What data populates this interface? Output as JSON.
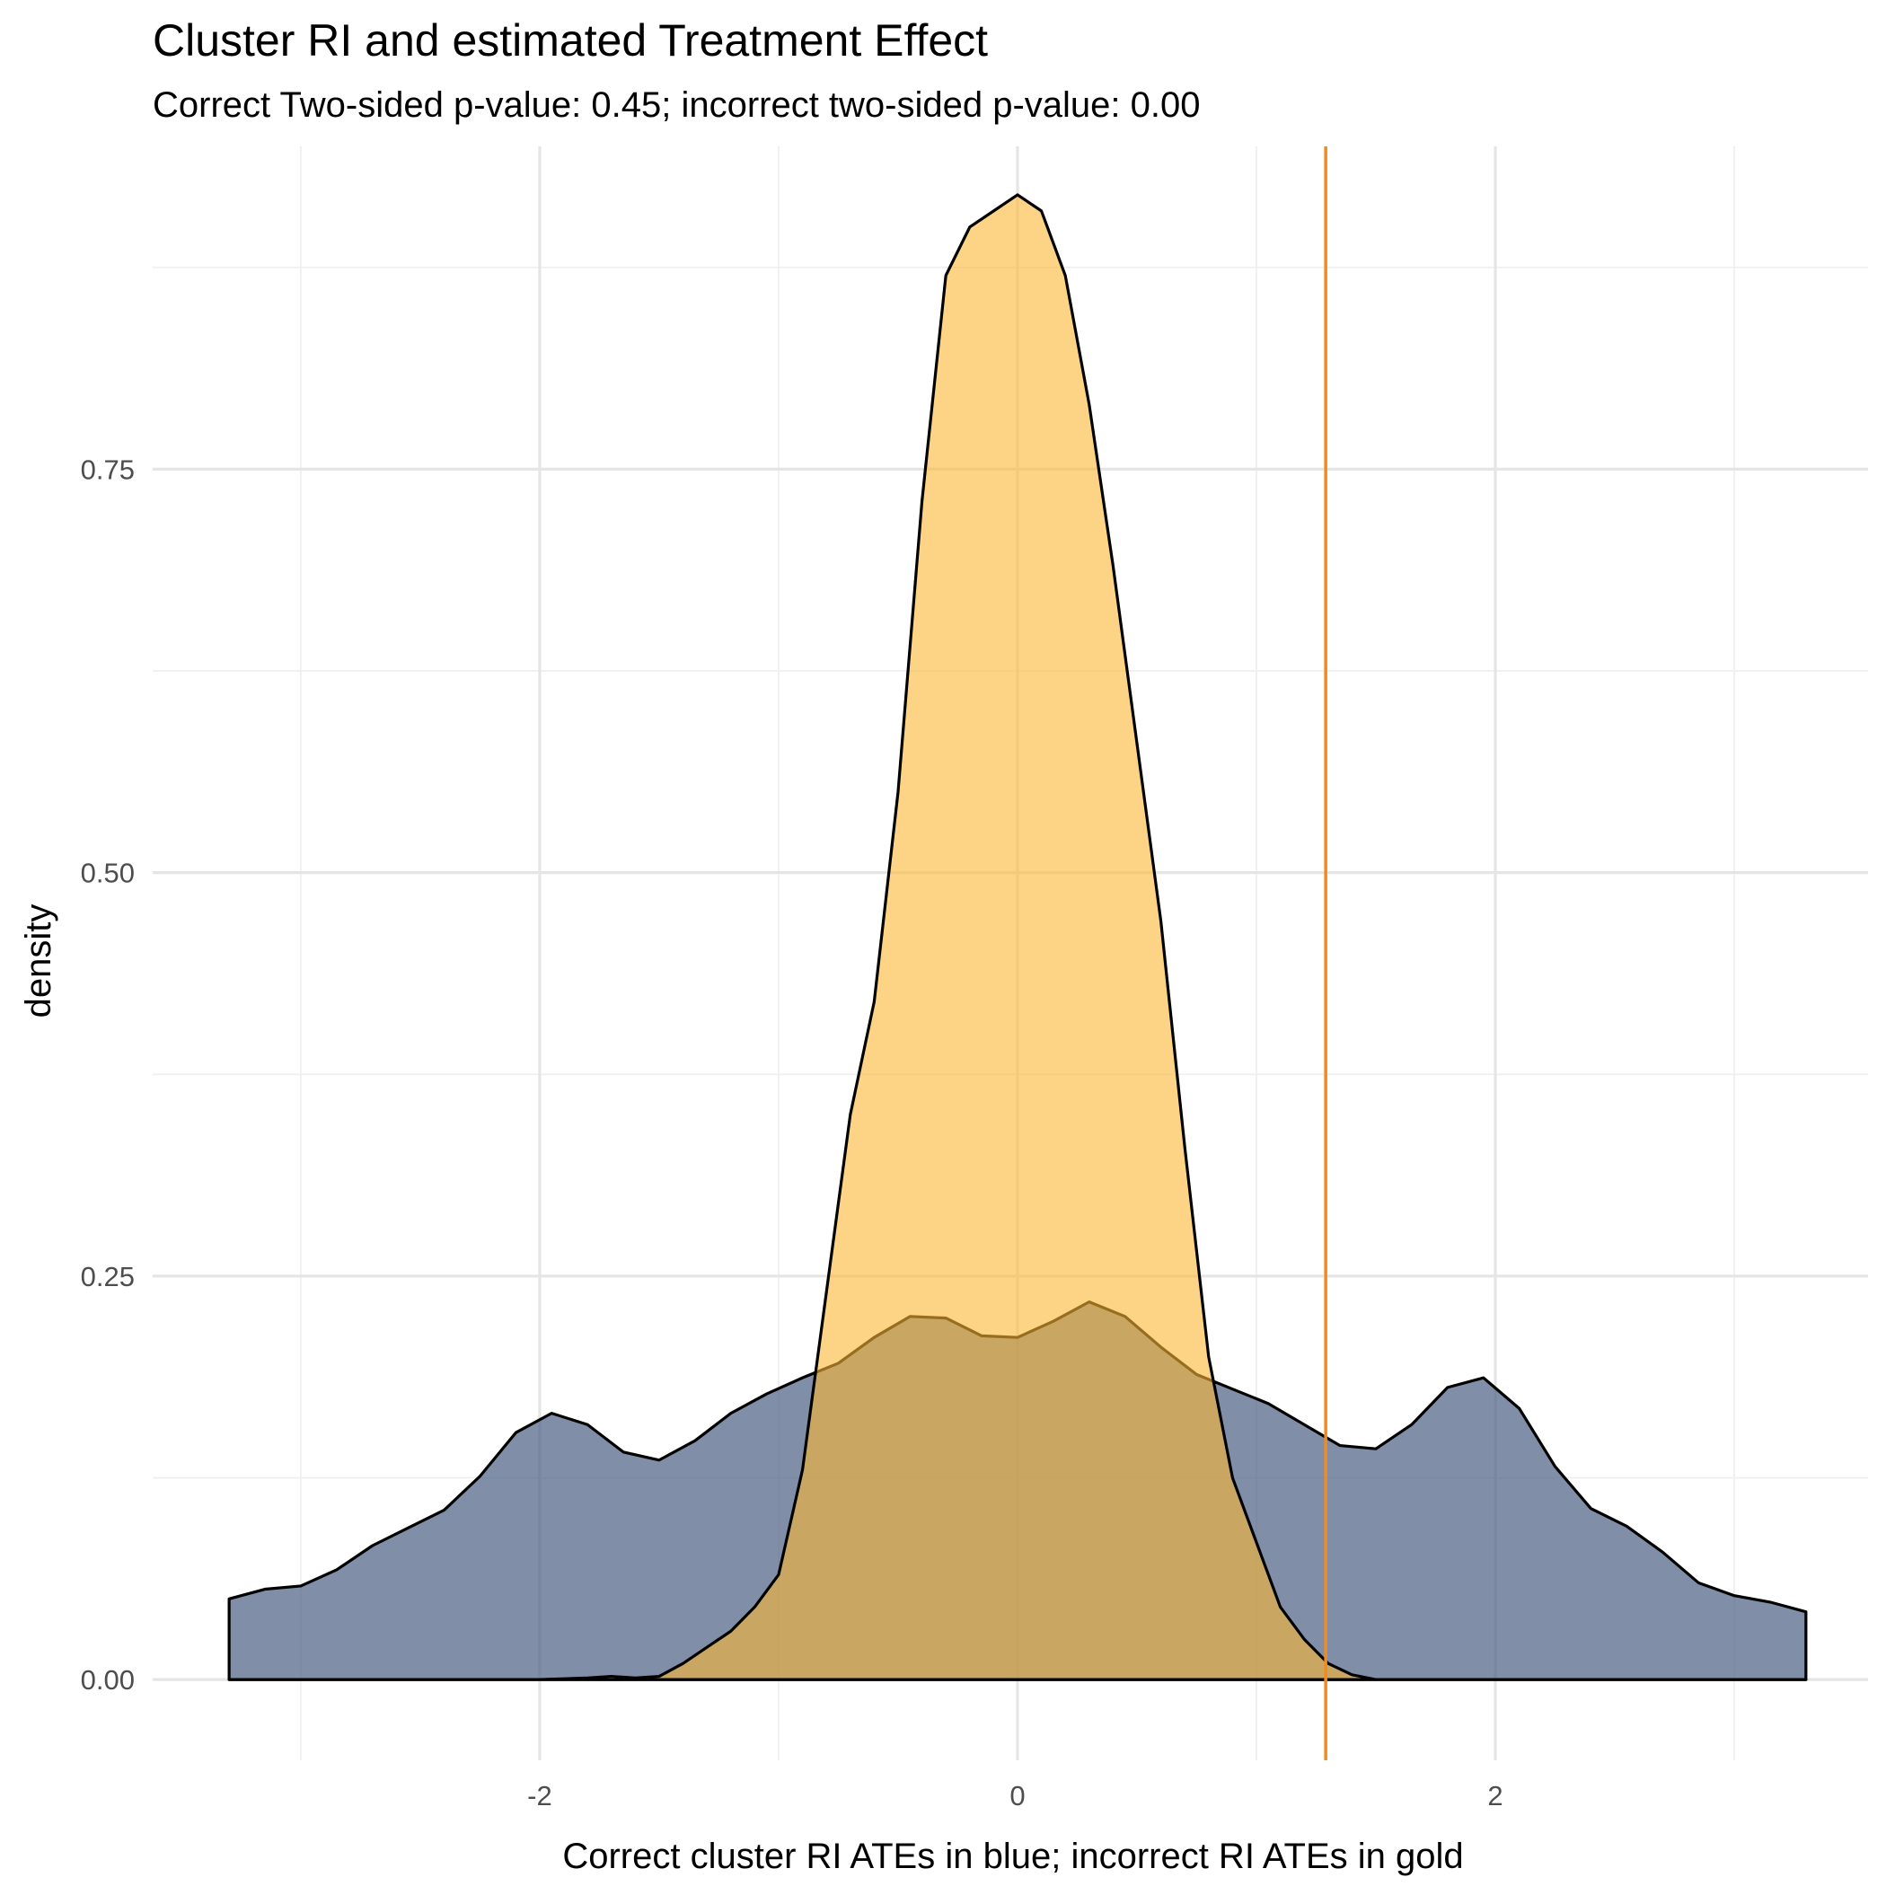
{
  "chart_data": {
    "type": "area",
    "title": "Cluster RI and estimated Treatment Effect",
    "subtitle": "Correct Two-sided p-value: 0.45; incorrect two-sided p-value: 0.00",
    "xlabel": "Correct cluster RI ATEs in blue; incorrect RI ATEs in gold",
    "ylabel": "density",
    "xlim": [
      -3.62,
      3.56
    ],
    "ylim": [
      -0.05,
      0.95
    ],
    "x_ticks": [
      -2,
      0,
      2
    ],
    "x_tick_labels": [
      "-2",
      "0",
      "2"
    ],
    "y_ticks": [
      0,
      0.25,
      0.5,
      0.75
    ],
    "y_tick_labels": [
      "0.00",
      "0.25",
      "0.50",
      "0.75"
    ],
    "grid": true,
    "vline": {
      "x": 1.29,
      "color": "#F28A1E"
    },
    "series": [
      {
        "color": "#4A5F82",
        "fill_opacity": 0.7,
        "x": [
          -3.3,
          -3.15,
          -3.0,
          -2.85,
          -2.7,
          -2.55,
          -2.4,
          -2.25,
          -2.1,
          -1.95,
          -1.8,
          -1.65,
          -1.5,
          -1.35,
          -1.2,
          -1.05,
          -0.9,
          -0.75,
          -0.6,
          -0.45,
          -0.3,
          -0.15,
          0.0,
          0.15,
          0.3,
          0.45,
          0.6,
          0.75,
          0.9,
          1.05,
          1.2,
          1.35,
          1.5,
          1.65,
          1.8,
          1.95,
          2.1,
          2.25,
          2.4,
          2.55,
          2.7,
          2.85,
          3.0,
          3.15,
          3.3
        ],
        "y": [
          0.05,
          0.056,
          0.058,
          0.068,
          0.083,
          0.094,
          0.105,
          0.126,
          0.153,
          0.165,
          0.158,
          0.141,
          0.136,
          0.148,
          0.165,
          0.177,
          0.187,
          0.196,
          0.212,
          0.225,
          0.224,
          0.213,
          0.212,
          0.222,
          0.234,
          0.225,
          0.206,
          0.189,
          0.18,
          0.171,
          0.158,
          0.145,
          0.143,
          0.158,
          0.181,
          0.187,
          0.168,
          0.132,
          0.106,
          0.095,
          0.079,
          0.06,
          0.052,
          0.048,
          0.042
        ]
      },
      {
        "color": "#FBB535",
        "fill_opacity": 0.6,
        "x": [
          -3.3,
          -2.5,
          -2.0,
          -1.8,
          -1.7,
          -1.6,
          -1.5,
          -1.4,
          -1.3,
          -1.2,
          -1.1,
          -1.0,
          -0.9,
          -0.8,
          -0.7,
          -0.6,
          -0.5,
          -0.4,
          -0.3,
          -0.2,
          -0.1,
          0.0,
          0.1,
          0.2,
          0.3,
          0.4,
          0.5,
          0.6,
          0.7,
          0.8,
          0.9,
          1.0,
          1.1,
          1.2,
          1.3,
          1.4,
          1.5,
          3.3
        ],
        "y": [
          0.0,
          0.0,
          0.0,
          0.001,
          0.002,
          0.001,
          0.002,
          0.01,
          0.02,
          0.03,
          0.045,
          0.065,
          0.13,
          0.24,
          0.35,
          0.42,
          0.55,
          0.73,
          0.87,
          0.9,
          0.91,
          0.92,
          0.91,
          0.87,
          0.79,
          0.69,
          0.58,
          0.47,
          0.33,
          0.2,
          0.125,
          0.085,
          0.045,
          0.025,
          0.01,
          0.003,
          0.0,
          0.0
        ]
      }
    ]
  }
}
